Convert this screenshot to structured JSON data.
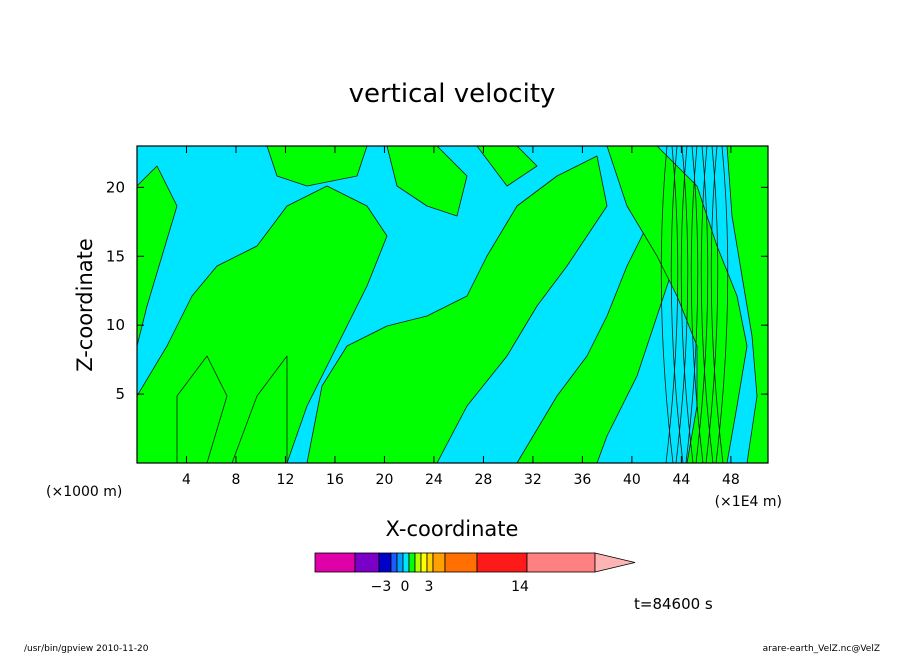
{
  "chart_data": {
    "type": "heatmap",
    "title": "vertical velocity",
    "xlabel": "X-coordinate",
    "ylabel": "Z-coordinate",
    "x_unit_left": "(×1000 m)",
    "x_unit_right": "(×1E4 m)",
    "xlim": [
      0,
      51
    ],
    "ylim": [
      0,
      23
    ],
    "x_ticks": [
      4,
      8,
      12,
      16,
      20,
      24,
      28,
      32,
      36,
      40,
      44,
      48
    ],
    "y_ticks": [
      5,
      10,
      15,
      20
    ],
    "colors": {
      "positive": "#00ff00",
      "negative": "#00e5ff",
      "contour": "#1a1a1a"
    },
    "colorbar": {
      "labels": [
        {
          "text": "−3",
          "value": -3
        },
        {
          "text": "0",
          "value": 0
        },
        {
          "text": "3",
          "value": 3
        },
        {
          "text": "14",
          "value": 14
        }
      ],
      "segments": [
        {
          "color": "#e000a8"
        },
        {
          "color": "#7a00c8"
        },
        {
          "color": "#0000c8"
        },
        {
          "color": "#1e5aff"
        },
        {
          "color": "#00a0ff"
        },
        {
          "color": "#00e5ff"
        },
        {
          "color": "#00ff00"
        },
        {
          "color": "#b4ff00"
        },
        {
          "color": "#ffff00"
        },
        {
          "color": "#ffd200"
        },
        {
          "color": "#ffa000"
        },
        {
          "color": "#ff7000"
        },
        {
          "color": "#ff1a1a"
        },
        {
          "color": "#ff8080"
        },
        {
          "color": "#ffb4b4"
        }
      ]
    },
    "time_label": "t=84600 s"
  },
  "footer": {
    "left": "/usr/bin/gpview   2010-11-20",
    "right": "arare-earth_VelZ.nc@VelZ"
  }
}
